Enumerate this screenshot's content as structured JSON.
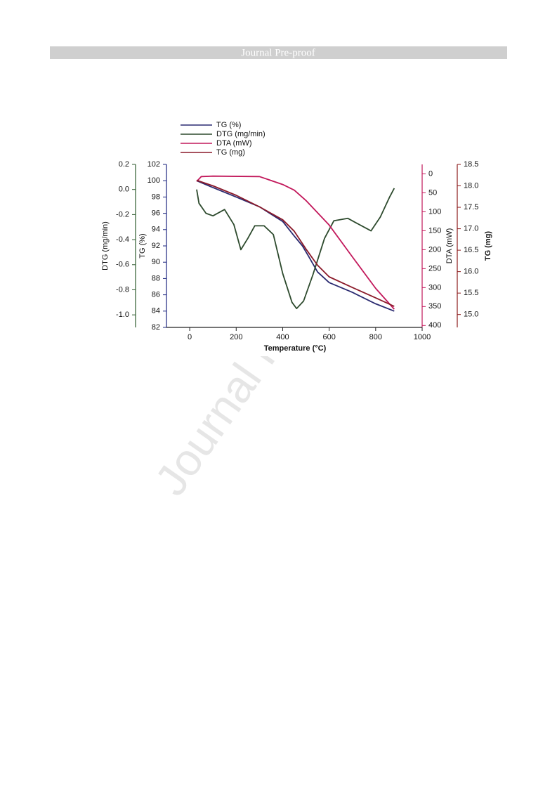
{
  "header": {
    "title": "Journal Pre-proof"
  },
  "watermark": "Journal Pre-proof",
  "chart_data": {
    "type": "line",
    "xlabel": "Temperature (°C)",
    "xlim": [
      -100,
      1000
    ],
    "xticks": [
      0,
      200,
      400,
      600,
      800,
      1000
    ],
    "ylabel": "TG (%)",
    "ylim": [
      82,
      102
    ],
    "yticks": [
      82,
      84,
      86,
      88,
      90,
      92,
      94,
      96,
      98,
      100,
      102
    ],
    "y2label": "DTG (mg/min)",
    "y2lim": [
      -1.1,
      0.2
    ],
    "y2ticks": [
      {
        "value": -1,
        "label": "-1.0"
      },
      -0.8,
      -0.6,
      -0.4,
      -0.2,
      {
        "value": 0,
        "label": "0.0"
      },
      0.2
    ],
    "y3label": "DTA (mW)",
    "y3lim": [
      405,
      -25
    ],
    "y3ticks": [
      0,
      50,
      100,
      150,
      200,
      250,
      300,
      350,
      400
    ],
    "y4label": "TG (mg)",
    "y4lim": [
      14.7,
      18.5
    ],
    "y4ticks": [
      {
        "value": 15,
        "label": "15.0"
      },
      15.5,
      {
        "value": 16,
        "label": "16.0"
      },
      16.5,
      {
        "value": 17,
        "label": "17.0"
      },
      17.5,
      {
        "value": 18,
        "label": "18.0"
      },
      18.5
    ],
    "series": [
      {
        "name": "TG (%)",
        "color": "#2a2a70",
        "axis": "y",
        "x": [
          30,
          88,
          200,
          300,
          400,
          450,
          485,
          512,
          550,
          600,
          700,
          800,
          880
        ],
        "values": [
          100,
          99.3,
          98,
          96.8,
          95,
          93.2,
          92,
          90.7,
          88.8,
          87.5,
          86.3,
          84.9,
          84
        ]
      },
      {
        "name": "DTG (mg/min)",
        "color": "#2d4a2d",
        "axis": "y2",
        "x": [
          30,
          40,
          70,
          100,
          150,
          190,
          220,
          250,
          280,
          320,
          360,
          400,
          440,
          460,
          490,
          530,
          580,
          620,
          680,
          720,
          780,
          820,
          860,
          880
        ],
        "values": [
          0,
          -0.11,
          -0.19,
          -0.21,
          -0.16,
          -0.28,
          -0.48,
          -0.39,
          -0.29,
          -0.29,
          -0.36,
          -0.67,
          -0.9,
          -0.95,
          -0.89,
          -0.68,
          -0.39,
          -0.25,
          -0.23,
          -0.27,
          -0.33,
          -0.22,
          -0.06,
          0.01
        ]
      },
      {
        "name": "DTA (mW)",
        "color": "#c2185b",
        "axis": "y3",
        "x": [
          30,
          50,
          100,
          300,
          400,
          450,
          500,
          600,
          700,
          800,
          880
        ],
        "values": [
          20,
          7,
          6,
          7,
          28,
          43,
          70,
          135,
          219,
          302,
          357
        ]
      },
      {
        "name": "TG (mg)",
        "color": "#8b1a2a",
        "axis": "y4",
        "x": [
          30,
          100,
          200,
          300,
          400,
          450,
          500,
          550,
          600,
          700,
          800,
          880
        ],
        "values": [
          18.13,
          18,
          17.78,
          17.51,
          17.21,
          16.94,
          16.53,
          16.15,
          15.88,
          15.63,
          15.39,
          15.19
        ]
      }
    ]
  }
}
